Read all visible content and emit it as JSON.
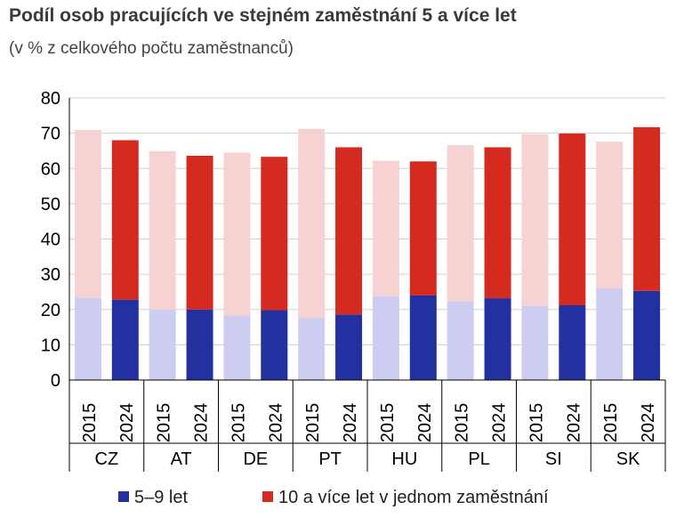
{
  "title": "Podíl osob pracujících ve stejném zaměstnání 5 a více let",
  "subtitle": "(v % z celkového počtu zaměstnanců)",
  "colors": {
    "short_2015": "#cccdf0",
    "short_2024": "#2230a0",
    "long_2015": "#f6d2d2",
    "long_2024": "#d42a20",
    "grid": "#d0d0d0",
    "axis": "#000000"
  },
  "legend": {
    "item1": "5–9 let",
    "item2": "10 a více let  v jednom zaměstnání"
  },
  "chart_data": {
    "type": "bar",
    "stacked": true,
    "title": "Podíl osob pracujících ve stejném zaměstnání 5 a více let",
    "ylabel": "",
    "xlabel": "",
    "ylim": [
      0,
      80
    ],
    "yticks": [
      0,
      10,
      20,
      30,
      40,
      50,
      60,
      70,
      80
    ],
    "groups": [
      "CZ",
      "AT",
      "DE",
      "PT",
      "HU",
      "PL",
      "SI",
      "SK"
    ],
    "years": [
      "2015",
      "2024"
    ],
    "series": [
      {
        "name": "5–9 let",
        "values_2015": [
          23.3,
          20.0,
          18.3,
          17.6,
          23.8,
          22.3,
          21.1,
          26.0
        ],
        "values_2024": [
          22.8,
          20.0,
          19.8,
          18.6,
          24.0,
          23.2,
          21.2,
          25.3
        ]
      },
      {
        "name": "10 a více let  v jednom zaměstnání",
        "values_2015": [
          47.6,
          44.9,
          46.2,
          53.6,
          38.4,
          44.3,
          48.6,
          41.6
        ],
        "values_2024": [
          45.2,
          43.6,
          43.5,
          47.4,
          38.0,
          42.8,
          48.7,
          46.4
        ]
      }
    ]
  }
}
